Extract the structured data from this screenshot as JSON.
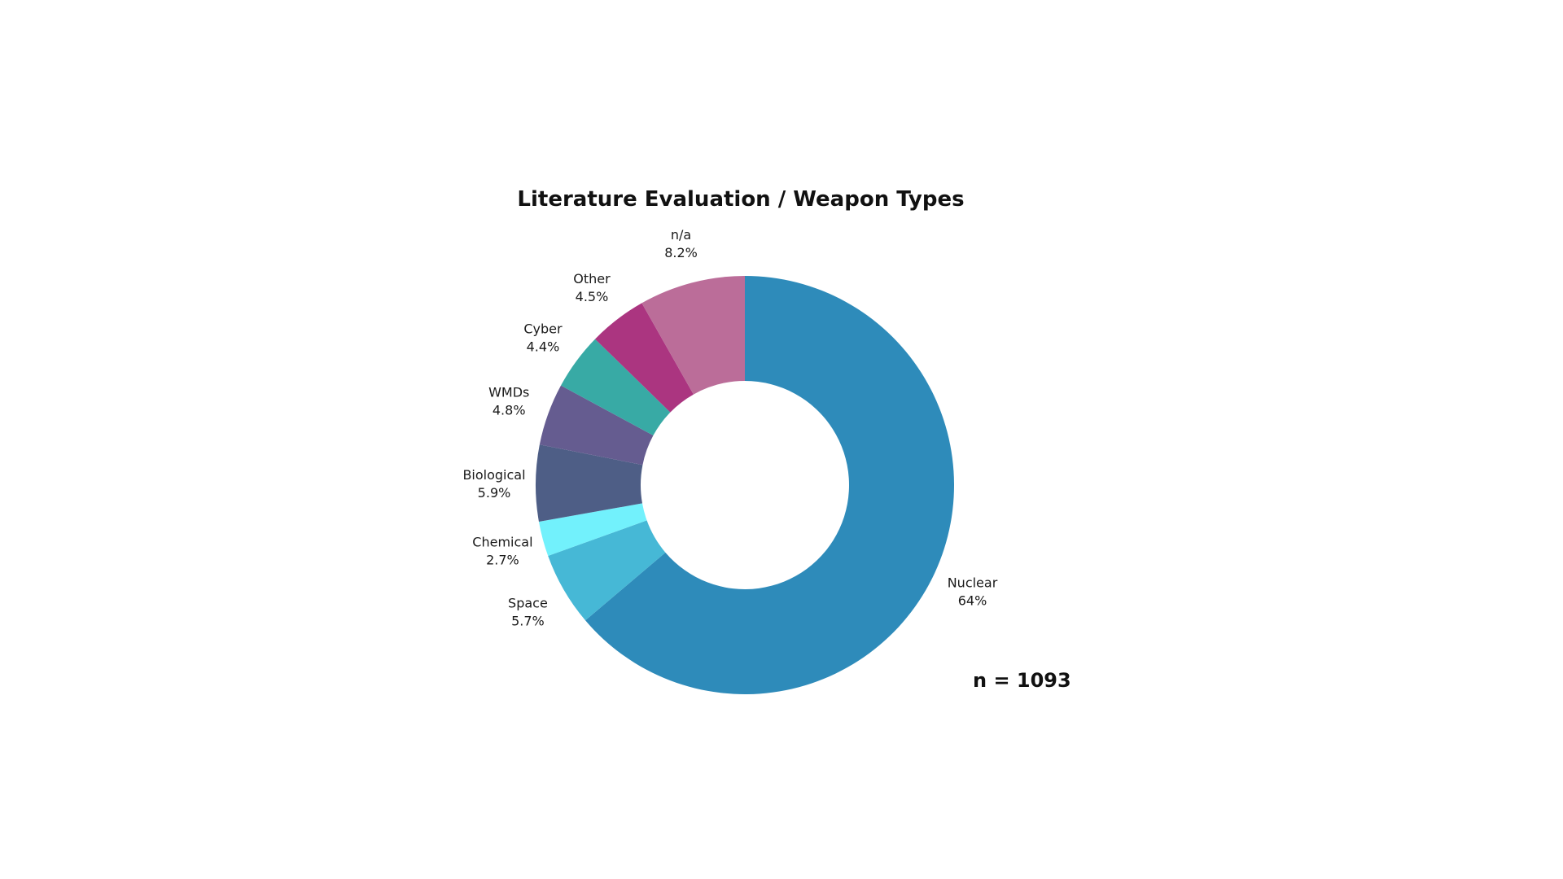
{
  "chart_data": {
    "type": "pie",
    "title": "Literature Evaluation / Weapon Types",
    "annotation": "n = 1093",
    "slices": [
      {
        "label": "Nuclear",
        "pct_label": "64%",
        "value": 63.8,
        "color": "#2E8BBA"
      },
      {
        "label": "Space",
        "pct_label": "5.7%",
        "value": 5.7,
        "color": "#46B8D6"
      },
      {
        "label": "Chemical",
        "pct_label": "2.7%",
        "value": 2.7,
        "color": "#72F1FC"
      },
      {
        "label": "Biological",
        "pct_label": "5.9%",
        "value": 5.9,
        "color": "#4E5E86"
      },
      {
        "label": "WMDs",
        "pct_label": "4.8%",
        "value": 4.8,
        "color": "#655C90"
      },
      {
        "label": "Cyber",
        "pct_label": "4.4%",
        "value": 4.4,
        "color": "#38AAA5"
      },
      {
        "label": "Other",
        "pct_label": "4.5%",
        "value": 4.5,
        "color": "#AB3580"
      },
      {
        "label": "n/a",
        "pct_label": "8.2%",
        "value": 8.2,
        "color": "#BB6D99"
      }
    ]
  }
}
